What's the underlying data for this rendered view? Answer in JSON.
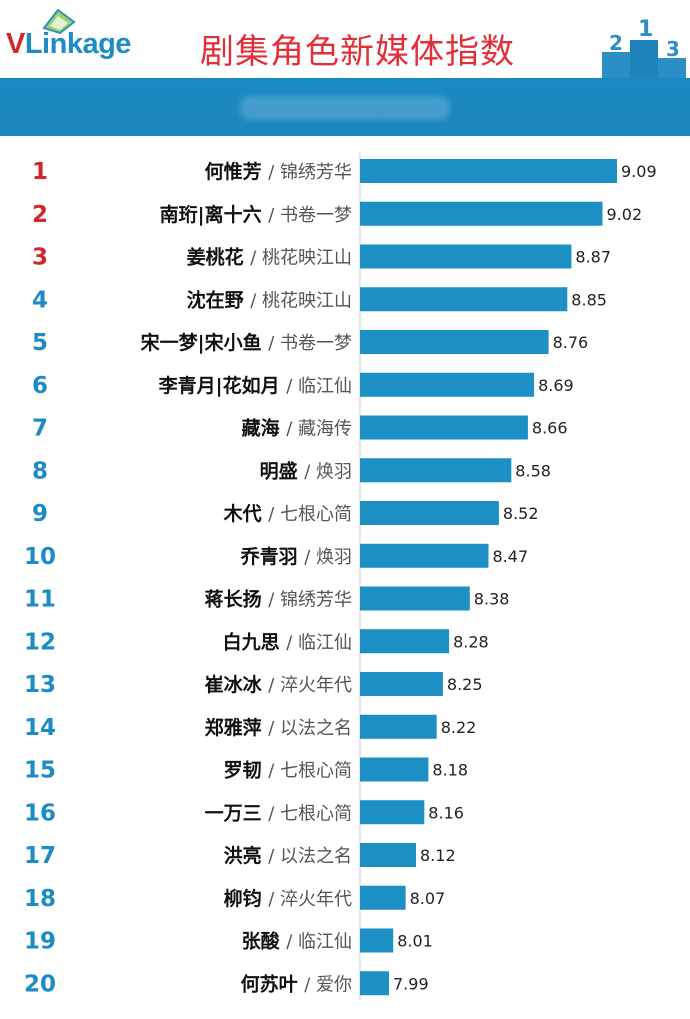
{
  "brand": {
    "logo_v": "V",
    "logo_rest": "Linkage"
  },
  "title": "剧集角色新媒体指数",
  "colors": {
    "bar": "#1c8fc4",
    "top_rank": "#d2262d",
    "rank": "#1d8cc4",
    "title": "#e0303a"
  },
  "chart_data": {
    "type": "bar",
    "orientation": "horizontal",
    "title": "剧集角色新媒体指数",
    "ranks": [
      1,
      2,
      3,
      4,
      5,
      6,
      7,
      8,
      9,
      10,
      11,
      12,
      13,
      14,
      15,
      16,
      17,
      18,
      19,
      20
    ],
    "names": [
      "何惟芳",
      "南珩|离十六",
      "姜桃花",
      "沈在野",
      "宋一梦|宋小鱼",
      "李青月|花如月",
      "藏海",
      "明盛",
      "木代",
      "乔青羽",
      "蒋长扬",
      "白九思",
      "崔冰冰",
      "郑雅萍",
      "罗韧",
      "一万三",
      "洪亮",
      "柳钧",
      "张酸",
      "何苏叶"
    ],
    "shows": [
      "/ 锦绣芳华",
      "/ 书卷一梦",
      "/ 桃花映江山",
      "/ 桃花映江山",
      "/ 书卷一梦",
      "/ 临江仙",
      "/ 藏海传",
      "/ 焕羽",
      "/ 七根心简",
      "/ 焕羽",
      "/ 锦绣芳华",
      "/ 临江仙",
      "/ 淬火年代",
      "/ 以法之名",
      "/ 七根心简",
      "/ 七根心简",
      "/ 以法之名",
      "/ 淬火年代",
      "/ 临江仙",
      "/ 爱你"
    ],
    "values": [
      9.09,
      9.02,
      8.87,
      8.85,
      8.76,
      8.69,
      8.66,
      8.58,
      8.52,
      8.47,
      8.38,
      8.28,
      8.25,
      8.22,
      8.18,
      8.16,
      8.12,
      8.07,
      8.01,
      7.99
    ],
    "value_labels": [
      "9.09",
      "9.02",
      "8.87",
      "8.85",
      "8.76",
      "8.69",
      "8.66",
      "8.58",
      "8.52",
      "8.47",
      "8.38",
      "8.28",
      "8.25",
      "8.22",
      "8.18",
      "8.16",
      "8.12",
      "8.07",
      "8.01",
      "7.99"
    ],
    "xlim": [
      7.85,
      9.09
    ],
    "grid": false,
    "legend": "none"
  }
}
